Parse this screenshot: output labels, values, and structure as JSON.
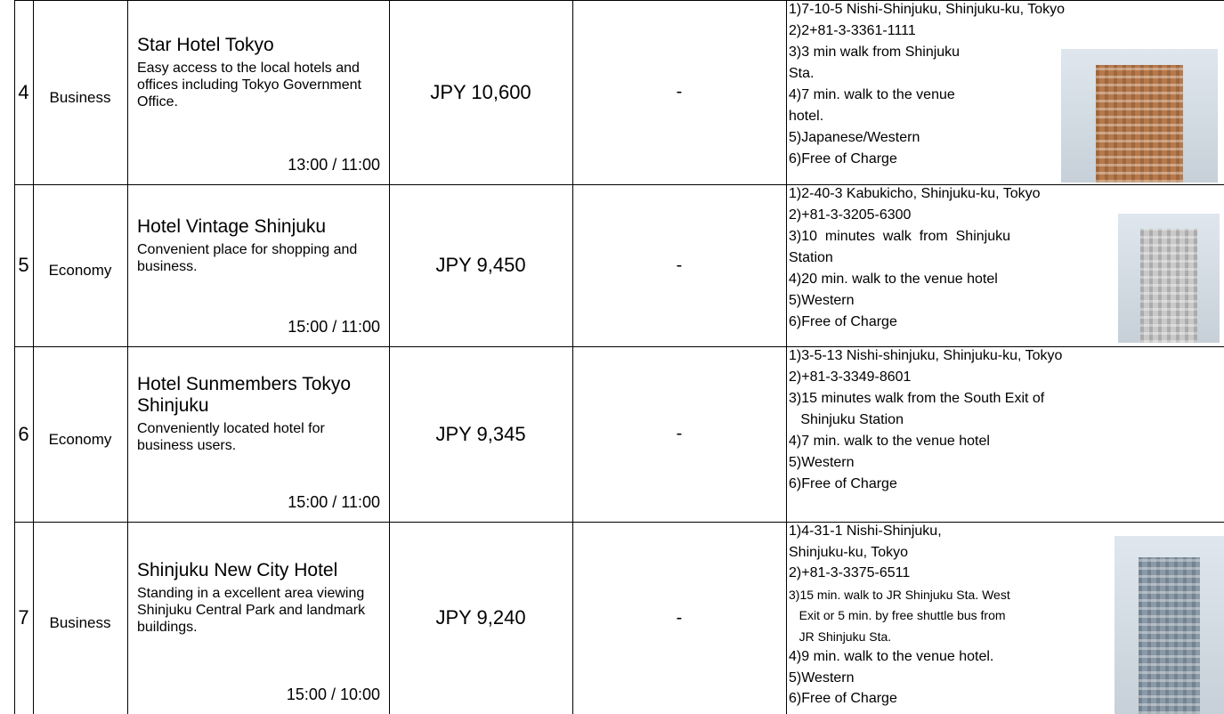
{
  "table": {
    "rows": [
      {
        "number": "4",
        "class": "Business",
        "name": "Star Hotel Tokyo",
        "description": "Easy access to the local hotels and offices including Tokyo Government Office.",
        "times": "13:00 / 11:00",
        "price": "JPY 10,600",
        "extra": "-",
        "info": [
          "1)7-10-5 Nishi-Shinjuku, Shinjuku-ku, Tokyo",
          "2)2+81-3-3361-1111",
          "3)3 min walk from Shinjuku",
          "Sta.",
          "4)7 min. walk to the venue",
          "hotel.",
          "5)Japanese/Western",
          "6)Free of Charge"
        ]
      },
      {
        "number": "5",
        "class": "Economy",
        "name": "Hotel Vintage Shinjuku",
        "description": "Convenient place for shopping and business.",
        "times": "15:00 / 11:00",
        "price": "JPY 9,450",
        "extra": "-",
        "info": [
          "1)2-40-3 Kabukicho, Shinjuku-ku, Tokyo",
          "2)+81-3-3205-6300",
          "3)10  minutes  walk  from  Shinjuku",
          "Station",
          "4)20 min. walk to the venue hotel",
          "5)Western",
          "6)Free of Charge"
        ]
      },
      {
        "number": "6",
        "class": "Economy",
        "name": "Hotel Sunmembers Tokyo Shinjuku",
        "description": "Conveniently located hotel for business users.",
        "times": "15:00 / 11:00",
        "price": "JPY 9,345",
        "extra": "-",
        "info": [
          "1)3-5-13 Nishi-shinjuku, Shinjuku-ku, Tokyo",
          "2)+81-3-3349-8601",
          "3)15 minutes walk from the South Exit of",
          "   Shinjuku Station",
          "4)7 min. walk to the venue hotel",
          "5)Western",
          "6)Free of Charge"
        ]
      },
      {
        "number": "7",
        "class": "Business",
        "name": "Shinjuku New City Hotel",
        "description": "Standing in a excellent area viewing Shinjuku Central Park and landmark buildings.",
        "times": "15:00 / 10:00",
        "price": "JPY 9,240",
        "extra": "-",
        "info": [
          "1)4-31-1 Nishi-Shinjuku,",
          "Shinjuku-ku, Tokyo",
          "2)+81-3-3375-6511",
          "3)15 min. walk to JR Shinjuku Sta. West",
          "   Exit or 5 min. by free shuttle bus from",
          "   JR Shinjuku Sta.",
          "4)9 min. walk to the venue hotel.",
          "5)Western",
          "6)Free of Charge"
        ]
      }
    ]
  }
}
